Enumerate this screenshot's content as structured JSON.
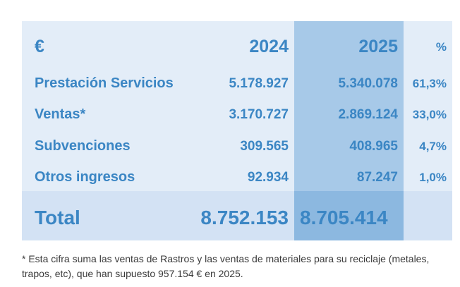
{
  "table": {
    "header": {
      "currency": "€",
      "col_2024": "2024",
      "col_2025": "2025",
      "col_pct": "%"
    },
    "rows": [
      {
        "label": "Prestación Servicios",
        "v2024": "5.178.927",
        "v2025": "5.340.078",
        "pct": "61,3%"
      },
      {
        "label": "Ventas*",
        "v2024": "3.170.727",
        "v2025": "2.869.124",
        "pct": "33,0%"
      },
      {
        "label": "Subvenciones",
        "v2024": "309.565",
        "v2025": "408.965",
        "pct": "4,7%"
      },
      {
        "label": "Otros ingresos",
        "v2024": "92.934",
        "v2025": "87.247",
        "pct": "1,0%"
      }
    ],
    "total": {
      "label": "Total",
      "v2024": "8.752.153",
      "v2025": "8.705.414"
    }
  },
  "footnote": "* Esta cifra suma las ventas de Rastros y las ventas de materiales para su reciclaje (metales, trapos, etc), que han supuesto 957.154 € en 2025.",
  "colors": {
    "text_accent": "#3b86c4",
    "table_bg": "#e3edf8",
    "highlight_col": "#a7c9e8",
    "total_band": "#d3e2f4",
    "total_highlight": "#8cb8e0",
    "footnote_text": "#3a3a3a"
  }
}
